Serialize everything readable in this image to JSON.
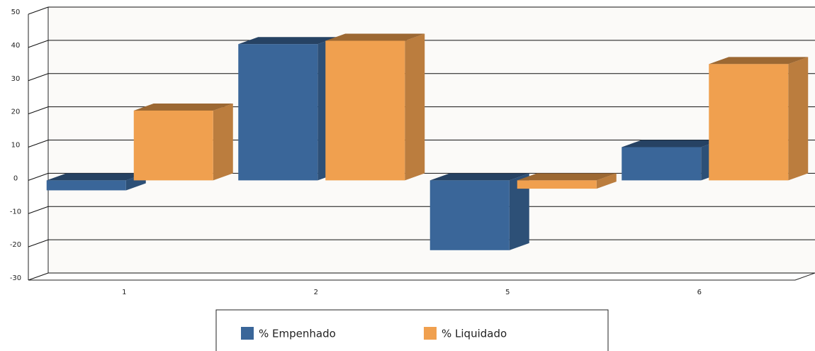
{
  "chart_data": {
    "type": "bar3d",
    "categories": [
      "1",
      "2",
      "5",
      "6"
    ],
    "series": [
      {
        "name": "% Empenhado",
        "color": "#3a6699",
        "values": [
          -3,
          41,
          -21,
          10
        ]
      },
      {
        "name": "% Liquidado",
        "color": "#f0a04f",
        "values": [
          21,
          42,
          -2.5,
          35
        ]
      }
    ],
    "ylim": [
      -30,
      50
    ],
    "yticks": [
      -30,
      -20,
      -10,
      0,
      10,
      20,
      30,
      40,
      50
    ],
    "grid": true
  }
}
